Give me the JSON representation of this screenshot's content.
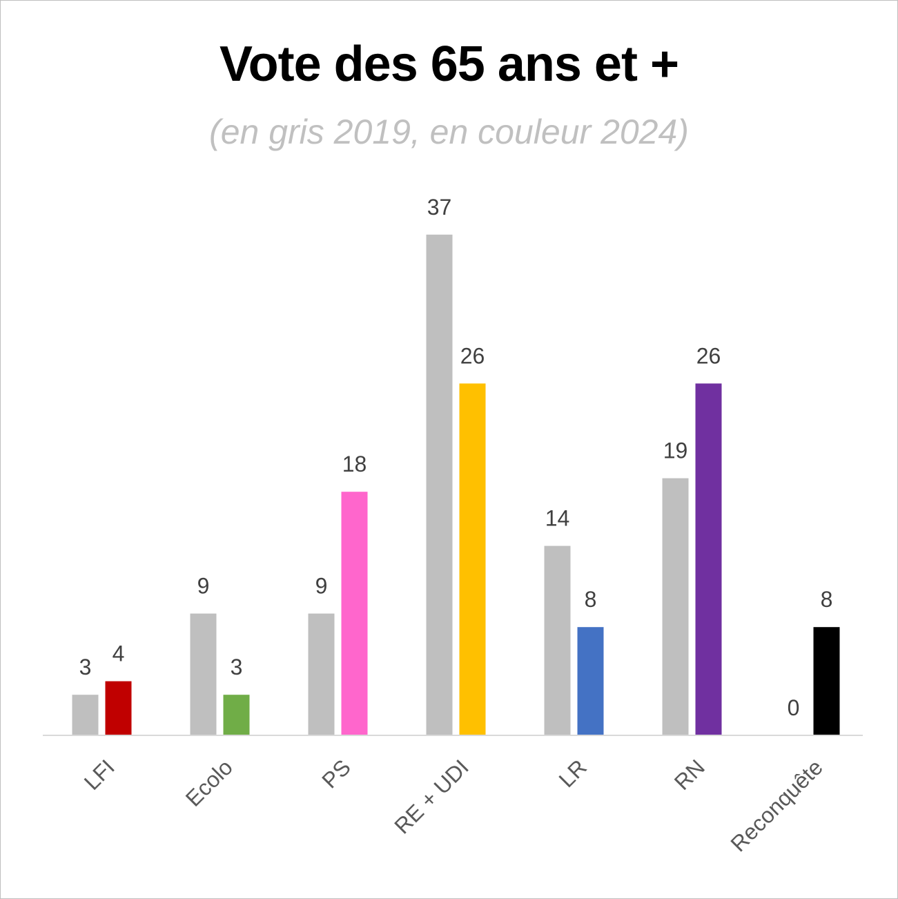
{
  "chart_data": {
    "type": "bar",
    "title": "Vote des 65 ans et +",
    "subtitle": "(en gris 2019, en couleur 2024)",
    "categories": [
      "LFI",
      "Ecolo",
      "PS",
      "RE + UDI",
      "LR",
      "RN",
      "Reconquête"
    ],
    "series": [
      {
        "values": [
          3,
          9,
          9,
          37,
          14,
          19,
          0
        ],
        "color": "#bfbfbf"
      },
      {
        "values": [
          4,
          3,
          18,
          26,
          8,
          26,
          8
        ],
        "colors": [
          "#c00000",
          "#70ad47",
          "#ff66cc",
          "#ffc000",
          "#4472c4",
          "#7030a0",
          "#000000"
        ]
      }
    ],
    "ylim": [
      0,
      40
    ],
    "grid": false,
    "legend": "none",
    "data_labels": true,
    "xlabel": "",
    "ylabel": ""
  }
}
